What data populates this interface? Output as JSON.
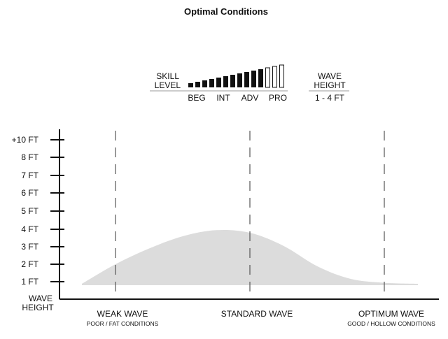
{
  "title": "Optimal Conditions",
  "skill": {
    "label_line1": "SKILL",
    "label_line2": "LEVEL",
    "levels": [
      "BEG",
      "INT",
      "ADV",
      "PRO"
    ],
    "bar_count": 14,
    "filled_count": 11
  },
  "wave_height_box": {
    "label_line1": "WAVE",
    "label_line2": "HEIGHT",
    "range": "1 - 4 FT"
  },
  "chart_data": {
    "type": "area",
    "ylabel_line1": "WAVE",
    "ylabel_line2": "HEIGHT",
    "y_ticks": [
      "1 FT",
      "2 FT",
      "3 FT",
      "4 FT",
      "5 FT",
      "6 FT",
      "7 FT",
      "8 FT",
      "+10 FT"
    ],
    "categories": [
      {
        "name": "WEAK WAVE",
        "sub": "POOR / FAT CONDITIONS"
      },
      {
        "name": "STANDARD WAVE",
        "sub": ""
      },
      {
        "name": "OPTIMUM WAVE",
        "sub": "GOOD / HOLLOW CONDITIONS"
      }
    ],
    "x": [
      -0.25,
      0,
      0.25,
      0.5,
      0.75,
      1,
      1.25,
      1.5,
      1.75,
      2,
      2.25
    ],
    "y": [
      1,
      2,
      2.9,
      3.6,
      3.95,
      3.8,
      3.05,
      1.9,
      1.25,
      1.05,
      1
    ],
    "colors": {
      "fill": "#dcdcdc",
      "axis": "#111111",
      "grid": "#555555"
    }
  }
}
